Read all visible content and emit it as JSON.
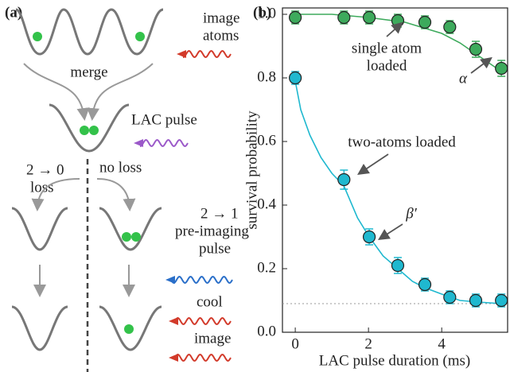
{
  "panel_a": {
    "label": "(a)",
    "image_atoms": [
      "image",
      "atoms"
    ],
    "merge": "merge",
    "lac_pulse": "LAC pulse",
    "loss": [
      "2 → 0",
      "loss"
    ],
    "no_loss": "no loss",
    "pre_imaging": [
      "2 → 1",
      "pre-imaging",
      "pulse"
    ],
    "cool": "cool",
    "image": "image"
  },
  "chart_data": {
    "type": "scatter",
    "panel_label": "(b)",
    "x_label": "LAC pulse duration (ms)",
    "y_label": "survival probability",
    "xlim": [
      -0.35,
      5.8
    ],
    "ylim": [
      0,
      1.02
    ],
    "xticks": [
      0,
      2,
      4
    ],
    "yticks": [
      {
        "value": 0,
        "label": "0.0"
      },
      0.2,
      0.4,
      0.6,
      0.8,
      {
        "value": 1,
        "label": "1.0"
      }
    ],
    "x": [
      0,
      1.33,
      2.02,
      2.8,
      3.54,
      4.22,
      4.93,
      5.63
    ],
    "series": [
      {
        "color": "#3daa5c",
        "values": [
          0.99,
          0.99,
          0.99,
          0.98,
          0.975,
          0.96,
          0.89,
          0.83
        ],
        "errors": [
          0.02,
          0.02,
          0.02,
          0.02,
          0.02,
          0.02,
          0.025,
          0.025
        ]
      },
      {
        "color": "#1fb8cf",
        "values": [
          0.8,
          0.48,
          0.3,
          0.21,
          0.15,
          0.11,
          0.1,
          0.1
        ],
        "errors": [
          0.02,
          0.03,
          0.025,
          0.025,
          0.02,
          0.02,
          0.02,
          0.02
        ]
      }
    ],
    "fits": [
      {
        "color": "#3daa5c",
        "x": [
          0,
          1,
          2,
          3,
          4,
          4.5,
          5,
          5.63
        ],
        "values": [
          1.0,
          1.0,
          0.99,
          0.975,
          0.94,
          0.91,
          0.87,
          0.82
        ]
      },
      {
        "color": "#1fb8cf",
        "x": [
          0,
          0.15,
          0.4,
          0.7,
          1.0,
          1.33,
          1.7,
          2.02,
          2.4,
          2.8,
          3.2,
          3.54,
          4.0,
          4.5,
          5.0,
          5.63
        ],
        "values": [
          0.79,
          0.7,
          0.62,
          0.55,
          0.5,
          0.46,
          0.36,
          0.3,
          0.24,
          0.2,
          0.16,
          0.14,
          0.12,
          0.1,
          0.095,
          0.09
        ]
      }
    ],
    "baseline": 0.09,
    "annotations": {
      "single": [
        "single atom",
        "loaded"
      ],
      "two": "two-atoms loaded",
      "alpha": "α",
      "beta": "β′"
    }
  }
}
